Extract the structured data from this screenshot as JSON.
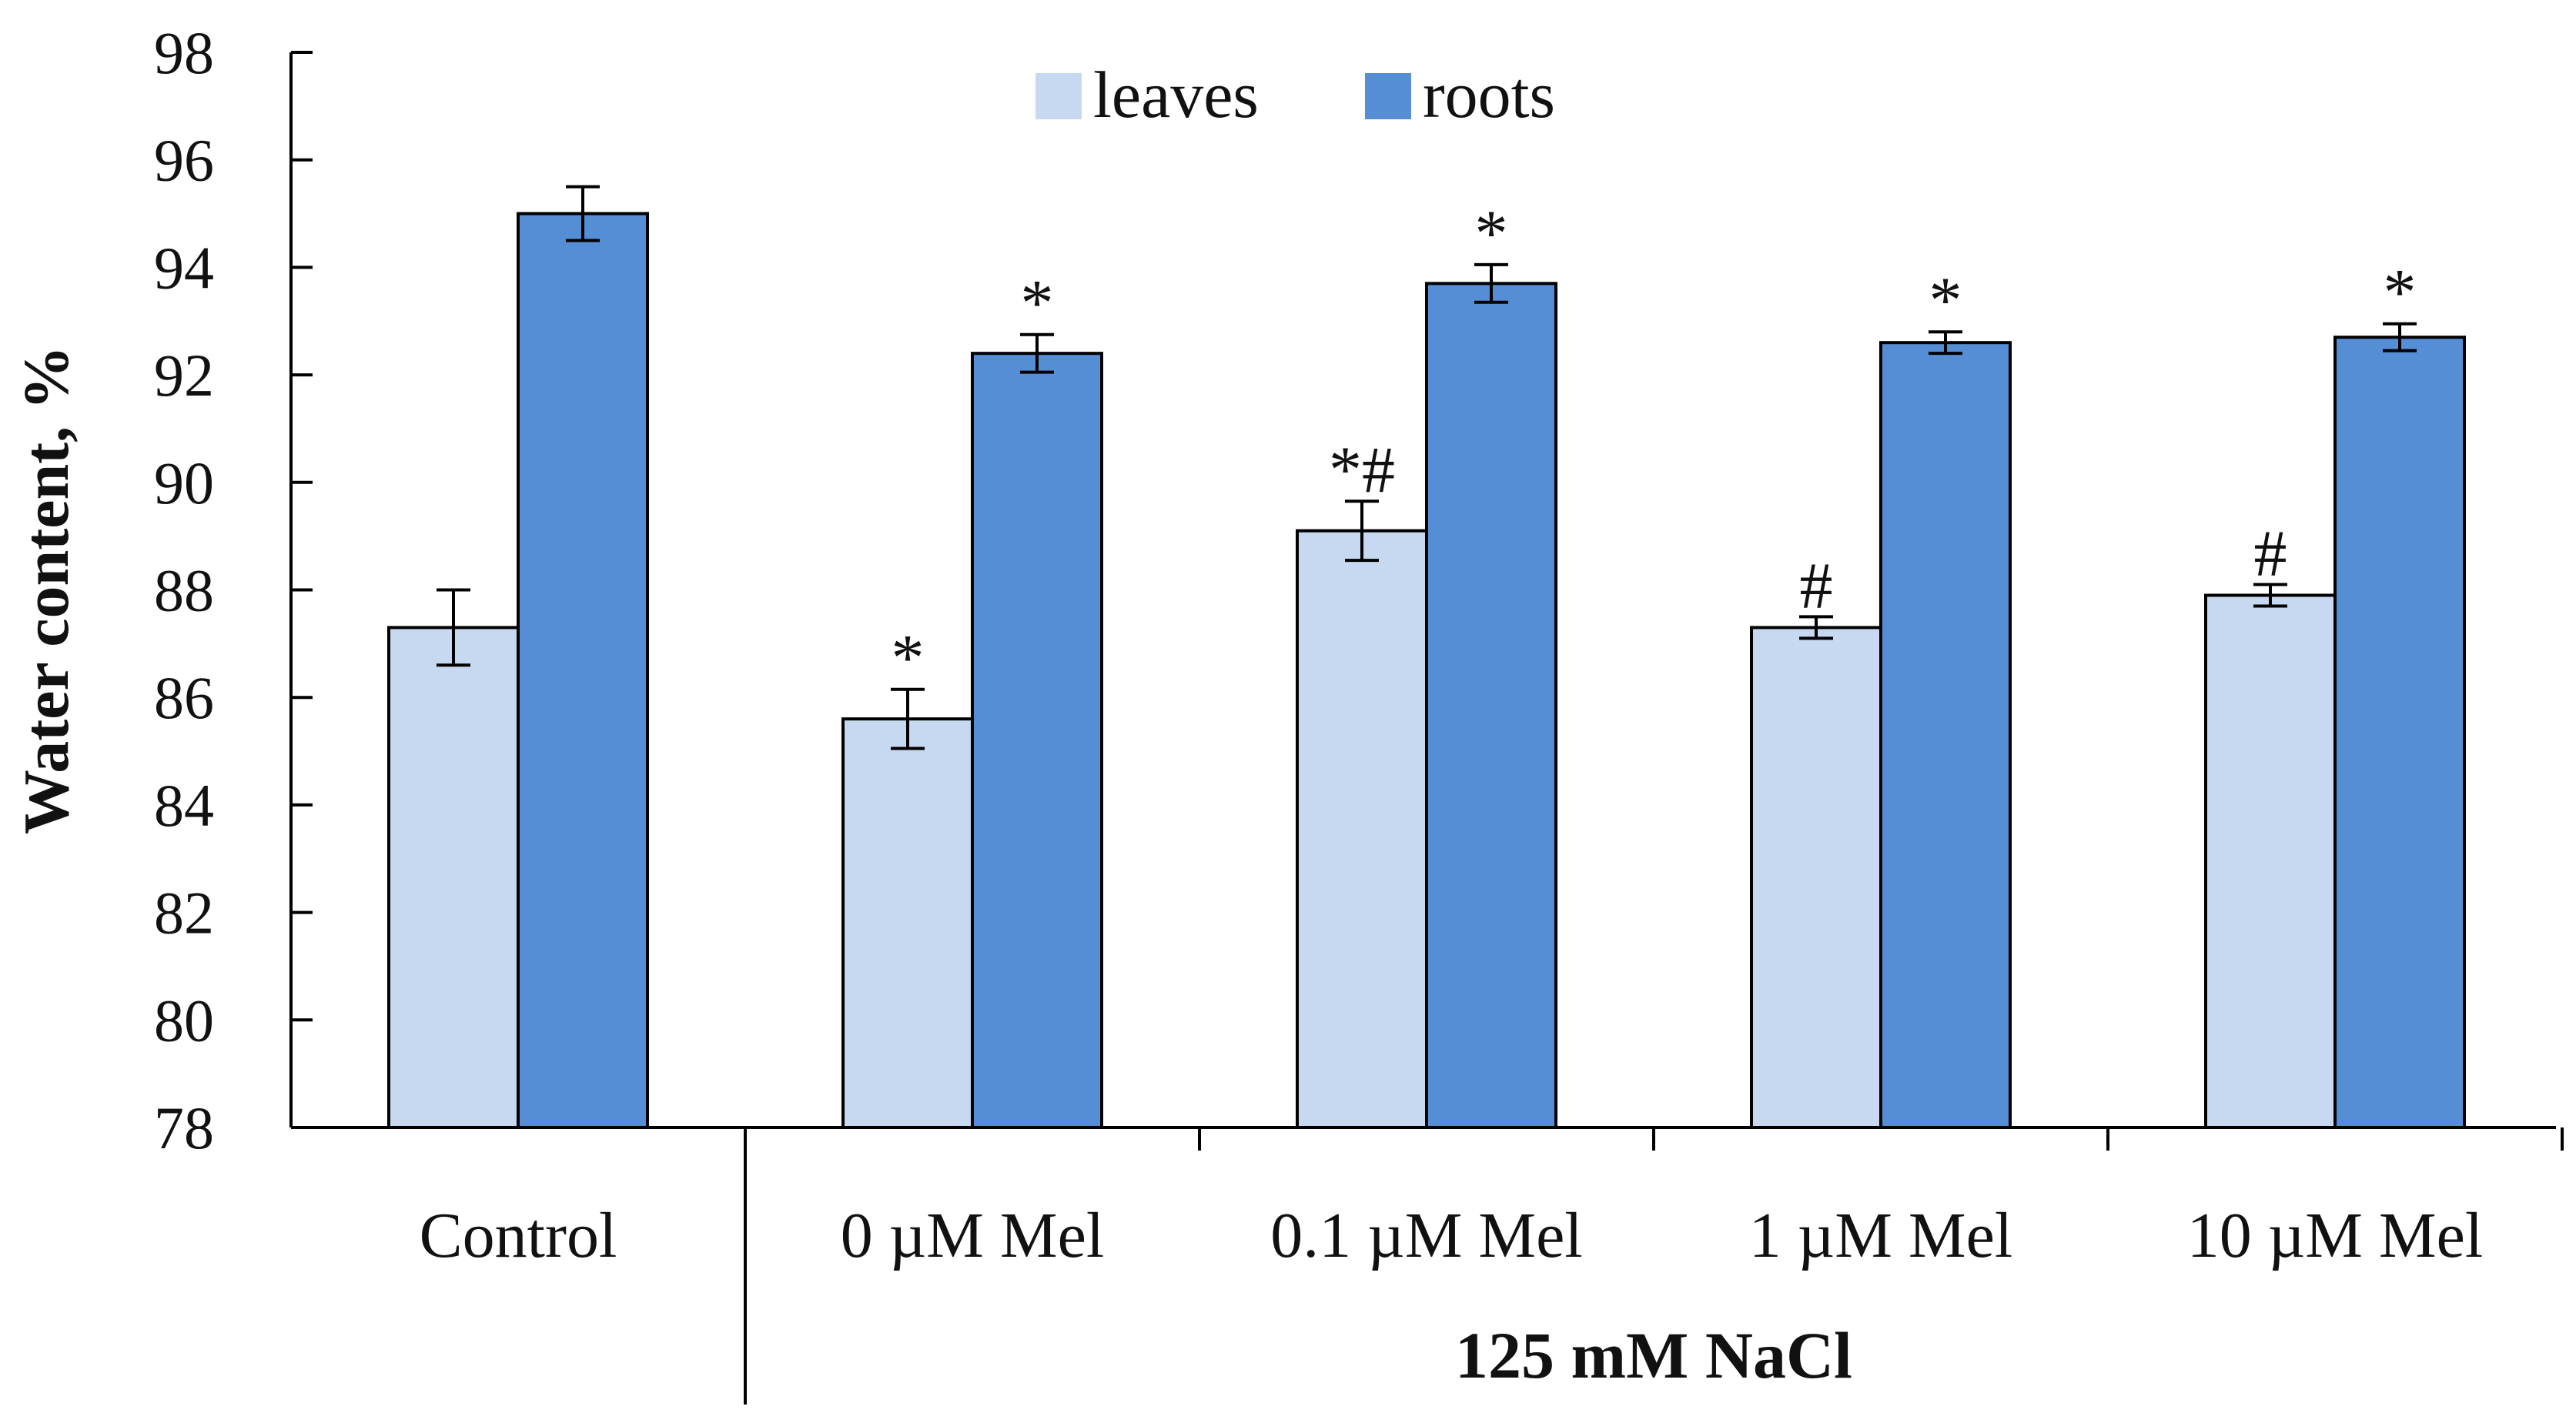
{
  "chart_data": {
    "type": "bar",
    "ylabel": "Water content, %",
    "group_label": "125 mM NaCl",
    "ylim": [
      78,
      98
    ],
    "yticks": [
      78,
      80,
      82,
      84,
      86,
      88,
      90,
      92,
      94,
      96,
      98
    ],
    "legend_position": "top-center",
    "categories": [
      "Control",
      "0 µM Mel",
      "0.1 µM Mel",
      "1 µM Mel",
      "10 µM Mel"
    ],
    "series": [
      {
        "name": "leaves",
        "color": "#c6d9f1",
        "values": [
          87.3,
          85.6,
          89.1,
          87.3,
          87.9
        ],
        "errors": [
          0.7,
          0.55,
          0.55,
          0.2,
          0.2
        ],
        "annotations": [
          "",
          "*",
          "*#",
          "#",
          "#"
        ]
      },
      {
        "name": "roots",
        "color": "#558ed5",
        "values": [
          95.0,
          92.4,
          93.7,
          92.6,
          92.7
        ],
        "errors": [
          0.5,
          0.35,
          0.35,
          0.2,
          0.25
        ],
        "annotations": [
          "",
          "*",
          "*",
          "*",
          "*"
        ]
      }
    ]
  }
}
